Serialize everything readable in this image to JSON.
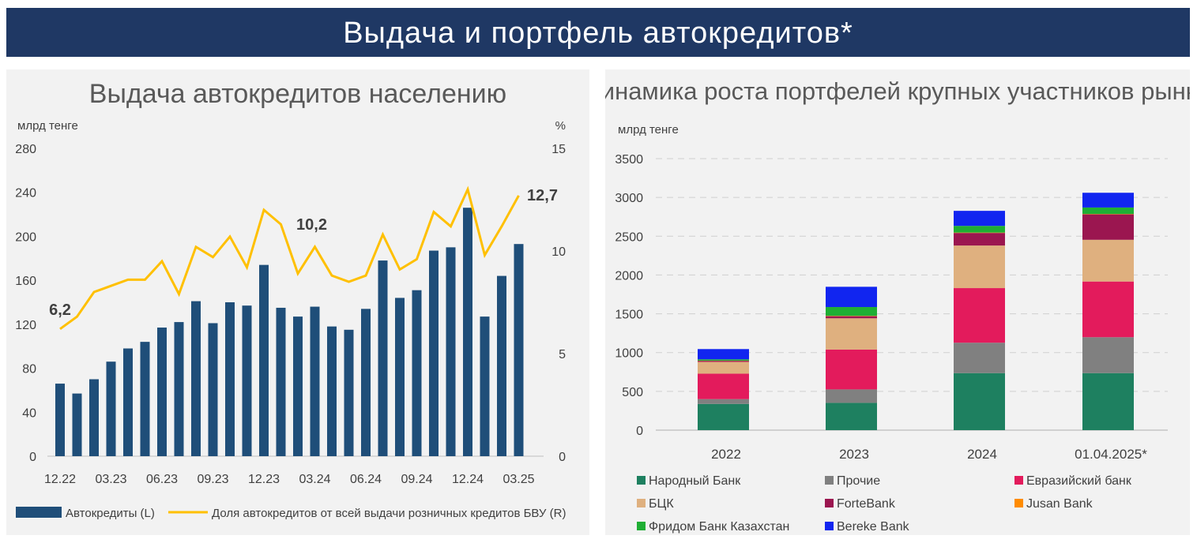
{
  "header": {
    "title": "Выдача и портфель автокредитов*"
  },
  "chart_data": [
    {
      "type": "bar+line",
      "title": "Выдача автокредитов населению",
      "ylabel_left": "млрд тенге",
      "ylabel_right": "%",
      "ylim_left": [
        0,
        280
      ],
      "yticks_left": [
        0,
        40,
        80,
        120,
        160,
        200,
        240,
        280
      ],
      "ylim_right": [
        0,
        15
      ],
      "yticks_right": [
        0,
        5,
        10,
        15
      ],
      "xtick_labels": [
        "12.22",
        "03.23",
        "06.23",
        "09.23",
        "12.23",
        "03.24",
        "06.24",
        "09.24",
        "12.24",
        "03.25"
      ],
      "x": [
        "12.22",
        "01.23",
        "02.23",
        "03.23",
        "04.23",
        "05.23",
        "06.23",
        "07.23",
        "08.23",
        "09.23",
        "10.23",
        "11.23",
        "12.23",
        "01.24",
        "02.24",
        "03.24",
        "04.24",
        "05.24",
        "06.24",
        "07.24",
        "08.24",
        "09.24",
        "10.24",
        "11.24",
        "12.24",
        "01.25",
        "02.25",
        "03.25"
      ],
      "series": [
        {
          "name": "Автокредиты (L)",
          "type": "bar",
          "color": "#1f4e79",
          "values": [
            66,
            57,
            70,
            86,
            98,
            104,
            117,
            122,
            141,
            121,
            140,
            137,
            174,
            135,
            127,
            136,
            118,
            115,
            134,
            178,
            144,
            151,
            187,
            190,
            226,
            127,
            164,
            193
          ]
        },
        {
          "name": "Доля автокредитов от всей выдачи розничных кредитов БВУ (R)",
          "type": "line",
          "color": "#ffc000",
          "values": [
            6.2,
            6.8,
            8.0,
            8.3,
            8.6,
            8.6,
            9.5,
            7.9,
            10.2,
            9.7,
            10.7,
            9.2,
            12.0,
            11.3,
            8.9,
            10.2,
            8.8,
            8.5,
            8.8,
            10.8,
            9.1,
            9.6,
            11.9,
            11.2,
            13.0,
            9.8,
            11.2,
            12.7
          ]
        }
      ],
      "annotations": [
        {
          "x": "12.22",
          "text": "6,2"
        },
        {
          "x": "03.24",
          "text": "10,2"
        },
        {
          "x": "03.25",
          "text": "12,7"
        }
      ],
      "grid": false,
      "legend": "bottom"
    },
    {
      "type": "stacked-bar",
      "title": "Динамика роста портфелей крупных участников рынка",
      "ylabel": "млрд тенге",
      "ylim": [
        0,
        3500
      ],
      "yticks": [
        0,
        500,
        1000,
        1500,
        2000,
        2500,
        3000,
        3500
      ],
      "categories": [
        "2022",
        "2023",
        "2024",
        "01.04.2025*"
      ],
      "series": [
        {
          "name": "Народный Банк",
          "color": "#1e8060",
          "values": [
            338,
            352,
            735,
            735
          ]
        },
        {
          "name": "Прочие",
          "color": "#808080",
          "values": [
            62,
            173,
            392,
            463
          ]
        },
        {
          "name": "Евразийский банк",
          "color": "#e31b5c",
          "values": [
            328,
            514,
            704,
            718
          ]
        },
        {
          "name": "БЦК",
          "color": "#dfb07f",
          "values": [
            152,
            403,
            549,
            538
          ]
        },
        {
          "name": "ForteBank",
          "color": "#9b1650",
          "values": [
            14,
            27,
            162,
            328
          ]
        },
        {
          "name": "Jusan Bank",
          "color": "#ff8c00",
          "values": [
            2,
            5,
            5,
            5
          ]
        },
        {
          "name": "Фридом Банк Казахстан",
          "color": "#1fae34",
          "values": [
            17,
            113,
            86,
            83
          ]
        },
        {
          "name": "Bereke Bank",
          "color": "#1125f0",
          "values": [
            132,
            261,
            194,
            190
          ]
        }
      ],
      "grid": true,
      "legend": "bottom"
    }
  ]
}
